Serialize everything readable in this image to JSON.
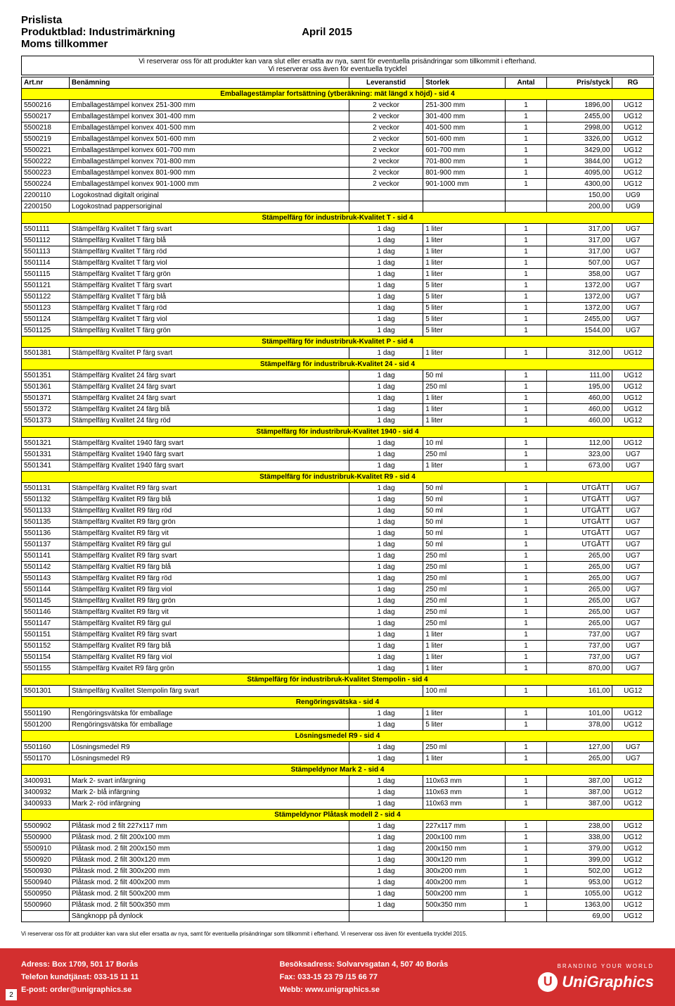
{
  "header": {
    "line1": "Prislista",
    "line2": "Produktblad: Industrimärkning",
    "line3": "Moms tillkommer",
    "date": "April 2015"
  },
  "disclaimer1": "Vi reserverar oss för att produkter kan vara slut eller ersatta av nya, samt för eventuella prisändringar som tillkommit i efterhand.",
  "disclaimer2": "Vi reserverar oss även för eventuella tryckfel",
  "columns": [
    "Art.nr",
    "Benämning",
    "Leveranstid",
    "Storlek",
    "Antal",
    "Pris/styck",
    "RG"
  ],
  "sections": [
    {
      "title": "Emballagestämplar fortsättning (ytberäkning: mät längd x höjd) - sid 4",
      "rows": [
        [
          "5500216",
          "Emballagestämpel konvex 251-300 mm",
          "2 veckor",
          "251-300 mm",
          "1",
          "1896,00",
          "UG12"
        ],
        [
          "5500217",
          "Emballagestämpel konvex 301-400 mm",
          "2 veckor",
          "301-400 mm",
          "1",
          "2455,00",
          "UG12"
        ],
        [
          "5500218",
          "Emballagestämpel konvex 401-500 mm",
          "2 veckor",
          "401-500 mm",
          "1",
          "2998,00",
          "UG12"
        ],
        [
          "5500219",
          "Emballagestämpel konvex 501-600 mm",
          "2 veckor",
          "501-600 mm",
          "1",
          "3326,00",
          "UG12"
        ],
        [
          "5500221",
          "Emballagestämpel konvex 601-700 mm",
          "2 veckor",
          "601-700 mm",
          "1",
          "3429,00",
          "UG12"
        ],
        [
          "5500222",
          "Emballagestämpel konvex 701-800 mm",
          "2 veckor",
          "701-800 mm",
          "1",
          "3844,00",
          "UG12"
        ],
        [
          "5500223",
          "Emballagestämpel konvex 801-900 mm",
          "2 veckor",
          "801-900 mm",
          "1",
          "4095,00",
          "UG12"
        ],
        [
          "5500224",
          "Emballagestämpel konvex 901-1000 mm",
          "2 veckor",
          "901-1000 mm",
          "1",
          "4300,00",
          "UG12"
        ],
        [
          "2200110",
          "Logokostnad digitalt original",
          "",
          "",
          "",
          "150,00",
          "UG9"
        ],
        [
          "2200150",
          "Logokostnad pappersoriginal",
          "",
          "",
          "",
          "200,00",
          "UG9"
        ]
      ]
    },
    {
      "title": "Stämpelfärg för industribruk-Kvalitet T - sid 4",
      "rows": [
        [
          "5501111",
          "Stämpelfärg Kvalitet T färg svart",
          "1 dag",
          "1 liter",
          "1",
          "317,00",
          "UG7"
        ],
        [
          "5501112",
          "Stämpelfärg Kvalitet T färg blå",
          "1 dag",
          "1 liter",
          "1",
          "317,00",
          "UG7"
        ],
        [
          "5501113",
          "Stämpelfärg Kvalitet T färg röd",
          "1 dag",
          "1 liter",
          "1",
          "317,00",
          "UG7"
        ],
        [
          "5501114",
          "Stämpelfärg Kvalitet T färg viol",
          "1 dag",
          "1 liter",
          "1",
          "507,00",
          "UG7"
        ],
        [
          "5501115",
          "Stämpelfärg Kvalitet T färg grön",
          "1 dag",
          "1 liter",
          "1",
          "358,00",
          "UG7"
        ],
        [
          "5501121",
          "Stämpelfärg Kvalitet T färg svart",
          "1 dag",
          "5 liter",
          "1",
          "1372,00",
          "UG7"
        ],
        [
          "5501122",
          "Stämpelfärg Kvalitet T färg blå",
          "1 dag",
          "5 liter",
          "1",
          "1372,00",
          "UG7"
        ],
        [
          "5501123",
          "Stämpelfärg Kvalitet T färg röd",
          "1 dag",
          "5 liter",
          "1",
          "1372,00",
          "UG7"
        ],
        [
          "5501124",
          "Stämpelfärg Kvalitet T färg viol",
          "1 dag",
          "5 liter",
          "1",
          "2455,00",
          "UG7"
        ],
        [
          "5501125",
          "Stämpelfärg Kvalitet T färg grön",
          "1 dag",
          "5 liter",
          "1",
          "1544,00",
          "UG7"
        ]
      ]
    },
    {
      "title": "Stämpelfärg för industribruk-Kvalitet P - sid 4",
      "rows": [
        [
          "5501381",
          "Stämpelfärg Kvalitet P färg svart",
          "1 dag",
          "1 liter",
          "1",
          "312,00",
          "UG12"
        ]
      ]
    },
    {
      "title": "Stämpelfärg för industribruk-Kvalitet 24 - sid 4",
      "rows": [
        [
          "5501351",
          "Stämpelfärg Kvalitet 24 färg svart",
          "1 dag",
          "50 ml",
          "1",
          "111,00",
          "UG12"
        ],
        [
          "5501361",
          "Stämpelfärg Kvalitet 24 färg svart",
          "1 dag",
          "250 ml",
          "1",
          "195,00",
          "UG12"
        ],
        [
          "5501371",
          "Stämpelfärg Kvalitet 24 färg svart",
          "1 dag",
          "1 liter",
          "1",
          "460,00",
          "UG12"
        ],
        [
          "5501372",
          "Stämpelfärg Kvalitet 24 färg blå",
          "1 dag",
          "1 liter",
          "1",
          "460,00",
          "UG12"
        ],
        [
          "5501373",
          "Stämpelfärg Kvalitet 24 färg röd",
          "1 dag",
          "1 liter",
          "1",
          "460,00",
          "UG12"
        ]
      ]
    },
    {
      "title": "Stämpelfärg för industribruk-Kvalitet 1940 - sid 4",
      "rows": [
        [
          "5501321",
          "Stämpelfärg Kvalitet 1940 färg svart",
          "1 dag",
          "10 ml",
          "1",
          "112,00",
          "UG12"
        ],
        [
          "5501331",
          "Stämpelfärg Kvalitet 1940 färg svart",
          "1 dag",
          "250 ml",
          "1",
          "323,00",
          "UG7"
        ],
        [
          "5501341",
          "Stämpelfärg Kvalitet 1940 färg svart",
          "1 dag",
          "1 liter",
          "1",
          "673,00",
          "UG7"
        ]
      ]
    },
    {
      "title": "Stämpelfärg för industribruk-Kvalitet R9 - sid 4",
      "rows": [
        [
          "5501131",
          "Stämpelfärg Kvalitet R9 färg svart",
          "1 dag",
          "50 ml",
          "1",
          "UTGÅTT",
          "UG7"
        ],
        [
          "5501132",
          "Stämpelfärg Kvalitet R9 färg blå",
          "1 dag",
          "50 ml",
          "1",
          "UTGÅTT",
          "UG7"
        ],
        [
          "5501133",
          "Stämpelfärg Kvalitet R9 färg röd",
          "1 dag",
          "50 ml",
          "1",
          "UTGÅTT",
          "UG7"
        ],
        [
          "5501135",
          "Stämpelfärg Kvalitet R9 färg grön",
          "1 dag",
          "50 ml",
          "1",
          "UTGÅTT",
          "UG7"
        ],
        [
          "5501136",
          "Stämpelfärg Kvalitet R9 färg vit",
          "1 dag",
          "50 ml",
          "1",
          "UTGÅTT",
          "UG7"
        ],
        [
          "5501137",
          "Stämpelfärg Kvalitet R9 färg gul",
          "1 dag",
          "50 ml",
          "1",
          "UTGÅTT",
          "UG7"
        ],
        [
          "5501141",
          "Stämpelfärg Kvalitet R9 färg svart",
          "1 dag",
          "250 ml",
          "1",
          "265,00",
          "UG7"
        ],
        [
          "5501142",
          "Stämpelfärg Kvaltiet R9 färg blå",
          "1 dag",
          "250 ml",
          "1",
          "265,00",
          "UG7"
        ],
        [
          "5501143",
          "Stämpelfärg Kvalitet R9 färg röd",
          "1 dag",
          "250 ml",
          "1",
          "265,00",
          "UG7"
        ],
        [
          "5501144",
          "Stämpelfärg Kvalitet R9 färg viol",
          "1 dag",
          "250 ml",
          "1",
          "265,00",
          "UG7"
        ],
        [
          "5501145",
          "Stämpelfärg Kvalitet R9 färg grön",
          "1 dag",
          "250 ml",
          "1",
          "265,00",
          "UG7"
        ],
        [
          "5501146",
          "Stämpelfärg Kvalitet R9 färg vit",
          "1 dag",
          "250 ml",
          "1",
          "265,00",
          "UG7"
        ],
        [
          "5501147",
          "Stämpelfärg Kvalitet R9 färg gul",
          "1 dag",
          "250 ml",
          "1",
          "265,00",
          "UG7"
        ],
        [
          "5501151",
          "Stämpelfärg Kvalitet R9 färg svart",
          "1 dag",
          "1 liter",
          "1",
          "737,00",
          "UG7"
        ],
        [
          "5501152",
          "Stämpelfärg Kvalitet R9 färg  blå",
          "1 dag",
          "1 liter",
          "1",
          "737,00",
          "UG7"
        ],
        [
          "5501154",
          "Stämpelfärg Kvalitet R9 färg viol",
          "1 dag",
          "1 liter",
          "1",
          "737,00",
          "UG7"
        ],
        [
          "5501155",
          "Stämpelfärg Kvaitet R9 färg grön",
          "1 dag",
          "1 liter",
          "1",
          "870,00",
          "UG7"
        ]
      ]
    },
    {
      "title": "Stämpelfärg för industribruk-Kvalitet Stempolin - sid 4",
      "rows": [
        [
          "5501301",
          "Stämpelfärg Kvalitet Stempolin färg svart",
          "",
          "100 ml",
          "1",
          "161,00",
          "UG12"
        ]
      ]
    },
    {
      "title": "Rengöringsvätska - sid 4",
      "rows": [
        [
          "5501190",
          "Rengöringsvätska för emballage",
          "1 dag",
          "1 liter",
          "1",
          "101,00",
          "UG12"
        ],
        [
          "5501200",
          "Rengöringsvätska för emballage",
          "1 dag",
          "5 liter",
          "1",
          "378,00",
          "UG12"
        ]
      ]
    },
    {
      "title": "Lösningsmedel R9 - sid 4",
      "rows": [
        [
          "5501160",
          "Lösningsmedel R9",
          "1 dag",
          "250 ml",
          "1",
          "127,00",
          "UG7"
        ],
        [
          "5501170",
          "Lösningsmedel R9",
          "1 dag",
          "1 liter",
          "1",
          "265,00",
          "UG7"
        ]
      ]
    },
    {
      "title": "Stämpeldynor Mark 2 - sid 4",
      "rows": [
        [
          "3400931",
          "Mark 2- svart infärgning",
          "1 dag",
          "110x63 mm",
          "1",
          "387,00",
          "UG12"
        ],
        [
          "3400932",
          "Mark 2- blå infärgning",
          "1 dag",
          "110x63 mm",
          "1",
          "387,00",
          "UG12"
        ],
        [
          "3400933",
          "Mark 2- röd infärgning",
          "1 dag",
          "110x63 mm",
          "1",
          "387,00",
          "UG12"
        ]
      ]
    },
    {
      "title": "Stämpeldynor Plåtask modell 2 - sid 4",
      "rows": [
        [
          "5500902",
          "Plåtask mod  2 filt 227x117 mm",
          "1 dag",
          "227x117 mm",
          "1",
          "238,00",
          "UG12"
        ],
        [
          "5500900",
          "Plåtask mod. 2 filt 200x100 mm",
          "1 dag",
          "200x100 mm",
          "1",
          "338,00",
          "UG12"
        ],
        [
          "5500910",
          "Plåtask mod. 2 filt 200x150 mm",
          "1 dag",
          "200x150 mm",
          "1",
          "379,00",
          "UG12"
        ],
        [
          "5500920",
          "Plåtask mod. 2 filt 300x120 mm",
          "1 dag",
          "300x120 mm",
          "1",
          "399,00",
          "UG12"
        ],
        [
          "5500930",
          "Plåtask mod. 2 filt 300x200 mm",
          "1 dag",
          "300x200 mm",
          "1",
          "502,00",
          "UG12"
        ],
        [
          "5500940",
          "Plåtask mod. 2 filt 400x200 mm",
          "1 dag",
          "400x200 mm",
          "1",
          "953,00",
          "UG12"
        ],
        [
          "5500950",
          "Plåtask mod. 2 filt 500x200 mm",
          "1 dag",
          "500x200 mm",
          "1",
          "1055,00",
          "UG12"
        ],
        [
          "5500960",
          "Plåtask mod. 2 filt 500x350 mm",
          "1 dag",
          "500x350 mm",
          "1",
          "1363,00",
          "UG12"
        ],
        [
          "",
          "Sängknopp på dynlock",
          "",
          "",
          "",
          "69,00",
          "UG12"
        ]
      ]
    }
  ],
  "footer_disclaimer": "Vi reserverar oss för att produkter kan vara slut eller ersatta av nya, samt för eventuella prisändringar som tillkommit i efterhand. Vi reserverar oss även för eventuella tryckfel 2015.",
  "footer": {
    "address": "Adress: Box 1709, 501 17 Borås",
    "phone": "Telefon kundtjänst: 033-15 11 11",
    "email": "E-post: order@unigraphics.se",
    "visit": "Besöksadress: Solvarvsgatan 4, 507 40 Borås",
    "fax": "Fax: 033-15 23 79 /15 66 77",
    "web": "Webb: www.unigraphics.se",
    "branding": "BRANDING      YOUR WORLD",
    "logo": "UniGraphics",
    "page": "2"
  }
}
